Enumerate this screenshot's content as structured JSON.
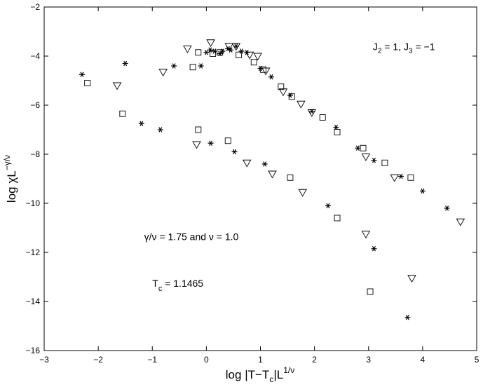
{
  "chart_data": {
    "type": "scatter",
    "xlabel": {
      "main": "log |T−T",
      "sub": "c",
      "mid": "|L",
      "sup": "1/ν"
    },
    "ylabel": {
      "main": "log χL",
      "sup": "−γ/ν"
    },
    "xlim": [
      -3,
      5
    ],
    "ylim": [
      -16,
      -2
    ],
    "xticks": [
      -3,
      -2,
      -1,
      0,
      1,
      2,
      3,
      4,
      5
    ],
    "yticks": [
      -16,
      -14,
      -12,
      -10,
      -8,
      -6,
      -4,
      -2
    ],
    "xtick_labels": [
      "−3",
      "−2",
      "−1",
      "0",
      "1",
      "2",
      "3",
      "4",
      "5"
    ],
    "ytick_labels": [
      "−16",
      "−14",
      "−12",
      "−10",
      "−8",
      "−6",
      "−4",
      "−2"
    ],
    "grid": false,
    "annotations": {
      "couplings": {
        "j2": "J",
        "j2sub": "2",
        "j2rest": " = 1, J",
        "j3sub": "3",
        "j3rest": " = −1",
        "x": 3.08,
        "y": -3.75
      },
      "exponents": {
        "text": "γ/ν = 1.75 and ν = 1.0",
        "x": -1.15,
        "y": -11.5
      },
      "tc": {
        "main": "T",
        "sub": "c",
        "rest": " = 1.1465",
        "x": -1.0,
        "y": -13.4
      }
    },
    "series": [
      {
        "marker": "asterisk",
        "points": [
          [
            -2.3,
            -4.75
          ],
          [
            -1.5,
            -4.3
          ],
          [
            -0.6,
            -4.4
          ],
          [
            -0.1,
            -4.4
          ],
          [
            0.0,
            -3.85
          ],
          [
            0.07,
            -3.75
          ],
          [
            0.15,
            -3.8
          ],
          [
            0.25,
            -3.9
          ],
          [
            0.3,
            -3.8
          ],
          [
            0.4,
            -3.7
          ],
          [
            0.45,
            -3.75
          ],
          [
            0.55,
            -3.6
          ],
          [
            0.65,
            -3.8
          ],
          [
            0.75,
            -3.85
          ],
          [
            1.0,
            -4.5
          ],
          [
            1.2,
            -4.85
          ],
          [
            1.55,
            -5.6
          ],
          [
            1.95,
            -6.25
          ],
          [
            2.4,
            -6.9
          ],
          [
            2.8,
            -7.75
          ],
          [
            3.1,
            -8.25
          ],
          [
            3.6,
            -8.9
          ],
          [
            4.0,
            -9.5
          ],
          [
            4.45,
            -10.2
          ],
          [
            -1.2,
            -6.75
          ],
          [
            -0.85,
            -7.0
          ],
          [
            0.08,
            -7.55
          ],
          [
            0.52,
            -7.9
          ],
          [
            1.08,
            -8.4
          ],
          [
            2.25,
            -10.1
          ],
          [
            3.1,
            -11.85
          ],
          [
            3.72,
            -14.65
          ]
        ]
      },
      {
        "marker": "square",
        "points": [
          [
            -2.2,
            -5.1
          ],
          [
            -0.25,
            -4.45
          ],
          [
            -0.15,
            -3.85
          ],
          [
            0.12,
            -3.9
          ],
          [
            0.25,
            -3.85
          ],
          [
            0.6,
            -3.95
          ],
          [
            0.88,
            -4.25
          ],
          [
            1.05,
            -4.55
          ],
          [
            1.38,
            -5.25
          ],
          [
            1.58,
            -5.65
          ],
          [
            2.15,
            -6.5
          ],
          [
            2.42,
            -7.1
          ],
          [
            2.9,
            -7.75
          ],
          [
            3.3,
            -8.35
          ],
          [
            3.78,
            -8.95
          ],
          [
            -1.55,
            -6.35
          ],
          [
            -0.15,
            -7.0
          ],
          [
            0.4,
            -7.45
          ],
          [
            1.55,
            -8.95
          ],
          [
            2.42,
            -10.6
          ],
          [
            3.03,
            -13.6
          ]
        ]
      },
      {
        "marker": "triangle-down",
        "points": [
          [
            -1.65,
            -5.2
          ],
          [
            -0.8,
            -4.65
          ],
          [
            -0.35,
            -3.7
          ],
          [
            0.08,
            -3.45
          ],
          [
            0.42,
            -3.6
          ],
          [
            0.55,
            -3.6
          ],
          [
            0.8,
            -3.95
          ],
          [
            0.95,
            -4.0
          ],
          [
            1.1,
            -4.6
          ],
          [
            1.42,
            -5.45
          ],
          [
            1.75,
            -5.95
          ],
          [
            1.95,
            -6.3
          ],
          [
            2.95,
            -8.1
          ],
          [
            3.48,
            -8.95
          ],
          [
            -0.18,
            -7.6
          ],
          [
            0.75,
            -8.35
          ],
          [
            1.22,
            -8.8
          ],
          [
            1.78,
            -9.55
          ],
          [
            2.95,
            -11.25
          ],
          [
            4.7,
            -10.75
          ],
          [
            3.8,
            -13.05
          ]
        ]
      }
    ]
  }
}
